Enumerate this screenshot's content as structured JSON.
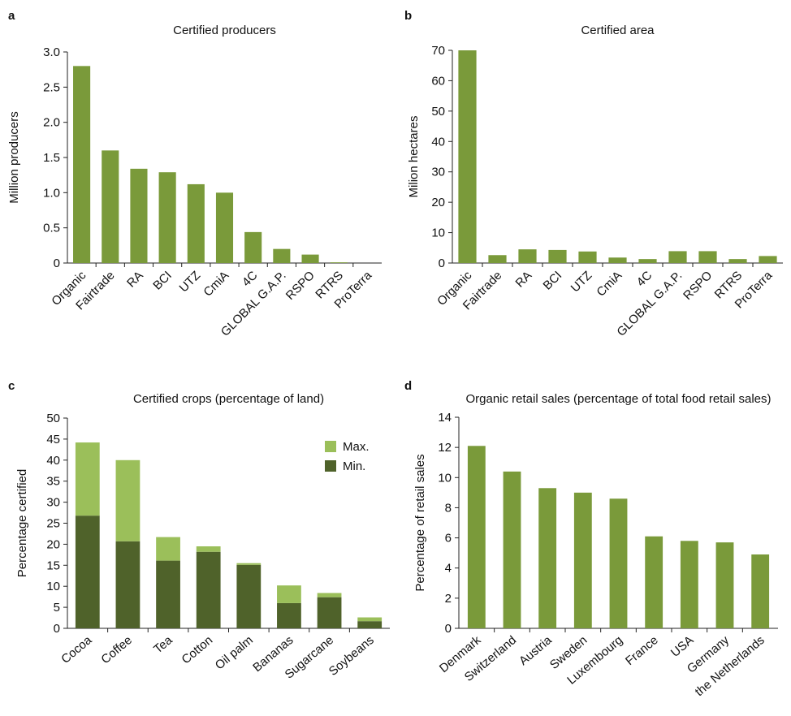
{
  "chart_data": [
    {
      "type": "bar",
      "label": "a",
      "title": "Certified producers",
      "ylabel": "Million producers",
      "categories": [
        "Organic",
        "Fairtrade",
        "RA",
        "BCI",
        "UTZ",
        "CmiA",
        "4C",
        "GLOBAL G.A.P.",
        "RSPO",
        "RTRS",
        "ProTerra"
      ],
      "values": [
        2.8,
        1.6,
        1.34,
        1.29,
        1.12,
        1.0,
        0.44,
        0.2,
        0.12,
        0.01,
        0
      ],
      "color": "#7a9a3a",
      "ylim": [
        0,
        3.0
      ],
      "yticks": [
        0,
        0.5,
        {
          "value": 1.0,
          "label": "1.0"
        },
        1.5,
        {
          "value": 2.0,
          "label": "2.0"
        },
        2.5,
        {
          "value": 3.0,
          "label": "3.0"
        }
      ]
    },
    {
      "type": "bar",
      "label": "b",
      "title": "Certified area",
      "ylabel": "Milion hectares",
      "categories": [
        "Organic",
        "Fairtrade",
        "RA",
        "BCI",
        "UTZ",
        "CmiA",
        "4C",
        "GLOBAL G.A.P.",
        "RSPO",
        "RTRS",
        "ProTerra"
      ],
      "values": [
        70,
        2.6,
        4.5,
        4.3,
        3.8,
        1.8,
        1.3,
        3.9,
        3.9,
        1.3,
        2.3
      ],
      "color": "#7a9a3a",
      "ylim": [
        0,
        70
      ],
      "yticks": [
        0,
        10,
        20,
        30,
        40,
        50,
        60,
        70
      ]
    },
    {
      "type": "stacked_bar",
      "label": "c",
      "title": "Certified crops (percentage of land)",
      "ylabel": "Percentage certified",
      "categories": [
        "Cocoa",
        "Coffee",
        "Tea",
        "Cotton",
        "Oil palm",
        "Bananas",
        "Sugarcane",
        "Soybeans"
      ],
      "series": [
        {
          "name": "Min.",
          "color": "#4f622a",
          "values": [
            26.8,
            20.7,
            16.1,
            18.2,
            15.1,
            6.0,
            7.4,
            1.7
          ]
        },
        {
          "name": "Max.",
          "color": "#9bbf5a",
          "values": [
            17.4,
            19.3,
            5.6,
            1.3,
            0.4,
            4.2,
            1.0,
            0.9
          ]
        }
      ],
      "ylim": [
        0,
        50
      ],
      "yticks": [
        0,
        5,
        10,
        15,
        20,
        25,
        30,
        35,
        40,
        45,
        50
      ],
      "legend": "top-right"
    },
    {
      "type": "bar",
      "label": "d",
      "title": "Organic retail sales (percentage of total food retail sales)",
      "ylabel": "Percentage of retail sales",
      "categories": [
        "Denmark",
        "Switzerland",
        "Austria",
        "Sweden",
        "Luxembourg",
        "France",
        "USA",
        "Germany",
        "the Netherlands"
      ],
      "values": [
        12.1,
        10.4,
        9.3,
        9.0,
        8.6,
        6.1,
        5.8,
        5.7,
        4.9
      ],
      "color": "#7a9a3a",
      "ylim": [
        0,
        14
      ],
      "yticks": [
        0,
        2,
        4,
        6,
        8,
        10,
        12,
        14
      ]
    }
  ]
}
